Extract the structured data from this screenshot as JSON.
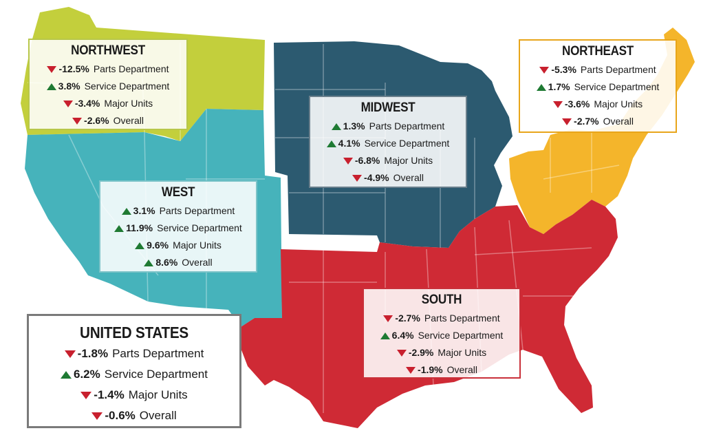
{
  "colors": {
    "northwest": "#c3cf3c",
    "west": "#46b3bb",
    "midwest": "#2c5a70",
    "northeast": "#f4b52b",
    "south": "#cf2a35",
    "up": "#1f7a33",
    "down": "#c8202e"
  },
  "regions": {
    "northwest": {
      "title": "NORTHWEST",
      "rows": [
        {
          "dir": "down",
          "value": "-12.5%",
          "label": "Parts Department"
        },
        {
          "dir": "up",
          "value": "3.8%",
          "label": "Service Department"
        },
        {
          "dir": "down",
          "value": "-3.4%",
          "label": "Major Units"
        },
        {
          "dir": "down",
          "value": "-2.6%",
          "label": "Overall"
        }
      ]
    },
    "northeast": {
      "title": "NORTHEAST",
      "rows": [
        {
          "dir": "down",
          "value": "-5.3%",
          "label": "Parts Department"
        },
        {
          "dir": "up",
          "value": "1.7%",
          "label": "Service Department"
        },
        {
          "dir": "down",
          "value": "-3.6%",
          "label": "Major Units"
        },
        {
          "dir": "down",
          "value": "-2.7%",
          "label": "Overall"
        }
      ]
    },
    "midwest": {
      "title": "MIDWEST",
      "rows": [
        {
          "dir": "up",
          "value": "1.3%",
          "label": "Parts Department"
        },
        {
          "dir": "up",
          "value": "4.1%",
          "label": "Service Department"
        },
        {
          "dir": "down",
          "value": "-6.8%",
          "label": "Major Units"
        },
        {
          "dir": "down",
          "value": "-4.9%",
          "label": "Overall"
        }
      ]
    },
    "west": {
      "title": "WEST",
      "rows": [
        {
          "dir": "up",
          "value": "3.1%",
          "label": "Parts Department"
        },
        {
          "dir": "up",
          "value": "11.9%",
          "label": "Service Department"
        },
        {
          "dir": "up",
          "value": "9.6%",
          "label": "Major Units"
        },
        {
          "dir": "up",
          "value": "8.6%",
          "label": "Overall"
        }
      ]
    },
    "south": {
      "title": "SOUTH",
      "rows": [
        {
          "dir": "down",
          "value": "-2.7%",
          "label": "Parts Department"
        },
        {
          "dir": "up",
          "value": "6.4%",
          "label": "Service Department"
        },
        {
          "dir": "down",
          "value": "-2.9%",
          "label": "Major Units"
        },
        {
          "dir": "down",
          "value": "-1.9%",
          "label": "Overall"
        }
      ]
    },
    "us": {
      "title": "UNITED STATES",
      "rows": [
        {
          "dir": "down",
          "value": "-1.8%",
          "label": "Parts Department"
        },
        {
          "dir": "up",
          "value": "6.2%",
          "label": "Service Department"
        },
        {
          "dir": "down",
          "value": "-1.4%",
          "label": "Major Units"
        },
        {
          "dir": "down",
          "value": "-0.6%",
          "label": "Overall"
        }
      ]
    }
  }
}
